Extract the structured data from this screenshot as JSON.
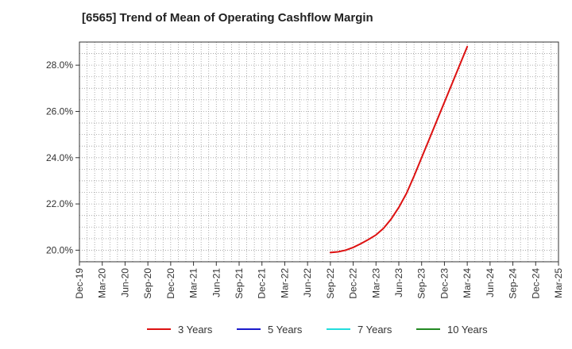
{
  "chart_data": {
    "type": "line",
    "title": "[6565]  Trend of Mean of Operating Cashflow Margin",
    "xlabel": "",
    "ylabel": "",
    "ylim": [
      19.5,
      29.0
    ],
    "yticks": [
      20.0,
      22.0,
      24.0,
      26.0,
      28.0
    ],
    "ytick_labels": [
      "20.0%",
      "22.0%",
      "24.0%",
      "26.0%",
      "28.0%"
    ],
    "x_start": "Dec-19",
    "x_end": "Mar-25",
    "xtick_labels": [
      "Dec-19",
      "Mar-20",
      "Jun-20",
      "Sep-20",
      "Dec-20",
      "Mar-21",
      "Jun-21",
      "Sep-21",
      "Dec-21",
      "Mar-22",
      "Jun-22",
      "Sep-22",
      "Dec-22",
      "Mar-23",
      "Jun-23",
      "Sep-23",
      "Dec-23",
      "Mar-24",
      "Jun-24",
      "Sep-24",
      "Dec-24",
      "Mar-25"
    ],
    "grid": true,
    "legend_position": "bottom",
    "series": [
      {
        "name": "3 Years",
        "color": "#dd1111",
        "x_months": [
          33,
          34,
          35,
          36,
          37,
          38,
          39,
          40,
          41,
          42,
          43,
          44,
          45,
          46,
          47,
          48,
          49,
          50,
          51
        ],
        "x": [
          "Sep-22",
          "Oct-22",
          "Nov-22",
          "Dec-22",
          "Jan-23",
          "Feb-23",
          "Mar-23",
          "Apr-23",
          "May-23",
          "Jun-23",
          "Jul-23",
          "Aug-23",
          "Sep-23",
          "Oct-23",
          "Nov-23",
          "Dec-23",
          "Jan-24",
          "Feb-24",
          "Mar-24"
        ],
        "values": [
          19.9,
          19.93,
          20.0,
          20.12,
          20.28,
          20.46,
          20.66,
          20.95,
          21.35,
          21.85,
          22.45,
          23.2,
          24.0,
          24.8,
          25.6,
          26.4,
          27.2,
          28.0,
          28.8
        ]
      },
      {
        "name": "5 Years",
        "color": "#1a1acc",
        "x": [],
        "values": []
      },
      {
        "name": "7 Years",
        "color": "#22dddd",
        "x": [],
        "values": []
      },
      {
        "name": "10 Years",
        "color": "#228822",
        "x": [],
        "values": []
      }
    ]
  }
}
